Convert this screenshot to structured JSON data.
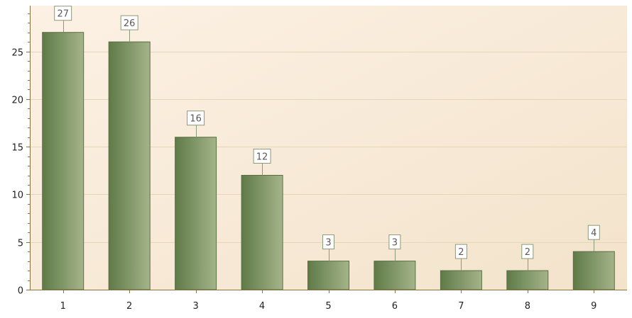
{
  "chart_data": {
    "type": "bar",
    "categories": [
      "1",
      "2",
      "3",
      "4",
      "5",
      "6",
      "7",
      "8",
      "9"
    ],
    "values": [
      27,
      26,
      16,
      12,
      3,
      3,
      2,
      2,
      4
    ],
    "data_labels": [
      "27",
      "26",
      "16",
      "12",
      "3",
      "3",
      "2",
      "2",
      "4"
    ],
    "title": "",
    "xlabel": "",
    "ylabel": "",
    "ylim": [
      0,
      29.8
    ],
    "yticks": [
      0,
      5,
      10,
      15,
      20,
      25
    ],
    "ytick_labels": [
      "0",
      "5",
      "10",
      "15",
      "20",
      "25"
    ],
    "grid": true,
    "legend": "none",
    "colors": {
      "bar_dark": "#5f7a47",
      "bar_light": "#a4b48a",
      "bar_stroke": "#5a6e44",
      "plot_bg_light": "#fcf1e4",
      "plot_bg_dark": "#f3e3cb",
      "axis": "#8a7340",
      "grid": "#e6d6b6",
      "label_border": "#8a9a7a",
      "label_bg": "#ffffff"
    }
  }
}
